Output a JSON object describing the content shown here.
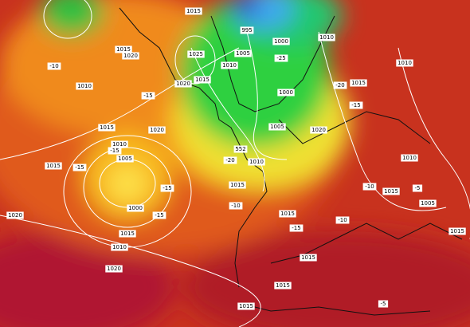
{
  "labels": [
    "1015",
    "1015",
    "1020",
    "1025",
    "1020",
    "1015",
    "1010",
    "1005",
    "1000",
    "995",
    "1010",
    "-25",
    "-20",
    "1015",
    "-15",
    "1010",
    "-10",
    "1010",
    "-15",
    "1015",
    "1020",
    "1000",
    "1005",
    "1020",
    "1010",
    "-15",
    "1005",
    "1015",
    "-15",
    "552",
    "1010",
    "-20",
    "1015",
    "-15",
    "1000",
    "-15",
    "-10",
    "1015",
    "-10",
    "1010",
    "-10",
    "1015",
    "-5",
    "1005",
    "1020",
    "1015",
    "1010",
    "-15",
    "1020",
    "1015",
    "1015",
    "1015",
    "1015",
    "-5"
  ]
}
